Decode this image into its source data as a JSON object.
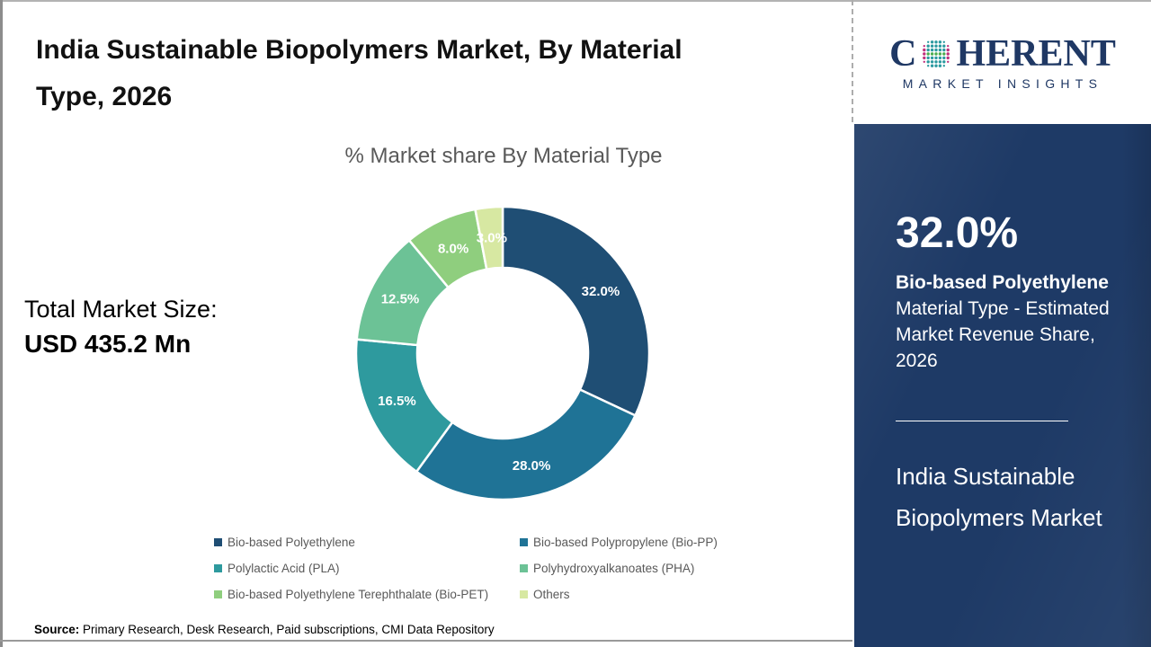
{
  "header": {
    "title": "India Sustainable Biopolymers Market, By Material Type, 2026"
  },
  "total_market": {
    "label": "Total Market Size:",
    "value": "USD 435.2 Mn"
  },
  "chart_data": {
    "type": "pie",
    "donut": true,
    "title": "% Market share By Material Type",
    "categories": [
      "Bio-based Polyethylene",
      "Bio-based Polypropylene (Bio-PP)",
      "Polylactic Acid (PLA)",
      "Polyhydroxyalkanoates (PHA)",
      "Bio-based Polyethylene Terephthalate (Bio-PET)",
      "Others"
    ],
    "values": [
      32.0,
      28.0,
      16.5,
      12.5,
      8.0,
      3.0
    ],
    "labels": [
      "32.0%",
      "28.0%",
      "16.5%",
      "12.5%",
      "8.0%",
      "3.0%"
    ],
    "colors": [
      "#1F4E74",
      "#1F7396",
      "#2E9A9E",
      "#6CC296",
      "#8FCE7E",
      "#D7E8A2"
    ],
    "start_angle_deg": 0,
    "direction": "clockwise",
    "legend_position": "bottom"
  },
  "sidebar": {
    "logo": {
      "brand_c": "C",
      "brand_rest": "HERENT",
      "tagline": "MARKET INSIGHTS",
      "text_color": "#1f3864",
      "globe_colors": {
        "teal": "#2b9aa0",
        "green": "#4cae4f",
        "magenta": "#c2307c"
      }
    },
    "highlight": {
      "value": "32.0%",
      "name": "Bio-based Polyethylene",
      "description": "Material Type - Estimated Market Revenue Share, 2026"
    },
    "market_name": "India Sustainable Biopolymers Market",
    "panel_color": "#1e3a66"
  },
  "footer": {
    "source_label": "Source:",
    "source_text": " Primary Research, Desk Research, Paid subscriptions, CMI Data Repository"
  }
}
